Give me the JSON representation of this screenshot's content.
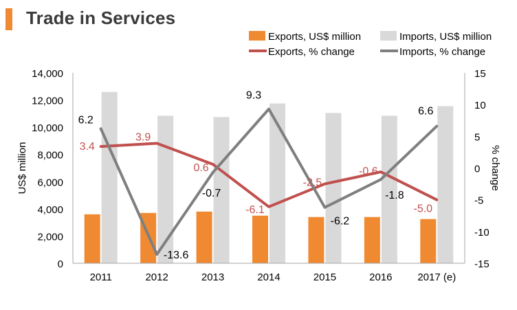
{
  "title": "Trade in Services",
  "chart_data": {
    "type": "bar+line",
    "categories": [
      "2011",
      "2012",
      "2013",
      "2014",
      "2015",
      "2016",
      "2017 (e)"
    ],
    "bar_series": [
      {
        "name": "Exports, US$ million",
        "color": "#f08a32",
        "values": [
          3600,
          3700,
          3800,
          3500,
          3400,
          3400,
          3250
        ]
      },
      {
        "name": "Imports, US$ million",
        "color": "#d9d9d9",
        "values": [
          12600,
          10850,
          10750,
          11750,
          11050,
          10850,
          11550
        ]
      }
    ],
    "line_series": [
      {
        "name": "Exports, % change",
        "color": "#c0504d",
        "values": [
          3.4,
          3.9,
          0.6,
          -6.1,
          -2.5,
          -0.6,
          -5.0
        ],
        "labels": [
          "3.4",
          "3.9",
          "0.6",
          "-6.1",
          "-2.5",
          "-0.6",
          "-5.0"
        ]
      },
      {
        "name": "Imports, % change",
        "color": "#7f7f7f",
        "values": [
          6.2,
          -13.6,
          -0.7,
          9.3,
          -6.2,
          -1.8,
          6.6
        ],
        "labels": [
          "6.2",
          "-13.6",
          "-0.7",
          "9.3",
          "-6.2",
          "-1.8",
          "6.6"
        ]
      }
    ],
    "left_axis": {
      "label": "US$ million",
      "ylim": [
        0,
        14000
      ],
      "ticks": [
        0,
        2000,
        4000,
        6000,
        8000,
        10000,
        12000,
        14000
      ],
      "tick_labels": [
        "0",
        "2,000",
        "4,000",
        "6,000",
        "8,000",
        "10,000",
        "12,000",
        "14,000"
      ]
    },
    "right_axis": {
      "label": "% change",
      "ylim": [
        -15,
        15
      ],
      "ticks": [
        -15,
        -10,
        -5,
        0,
        5,
        10,
        15
      ],
      "tick_labels": [
        "-15",
        "-10",
        "-5",
        "0",
        "5",
        "10",
        "15"
      ]
    },
    "grid": false,
    "legend_position": "top-right"
  }
}
